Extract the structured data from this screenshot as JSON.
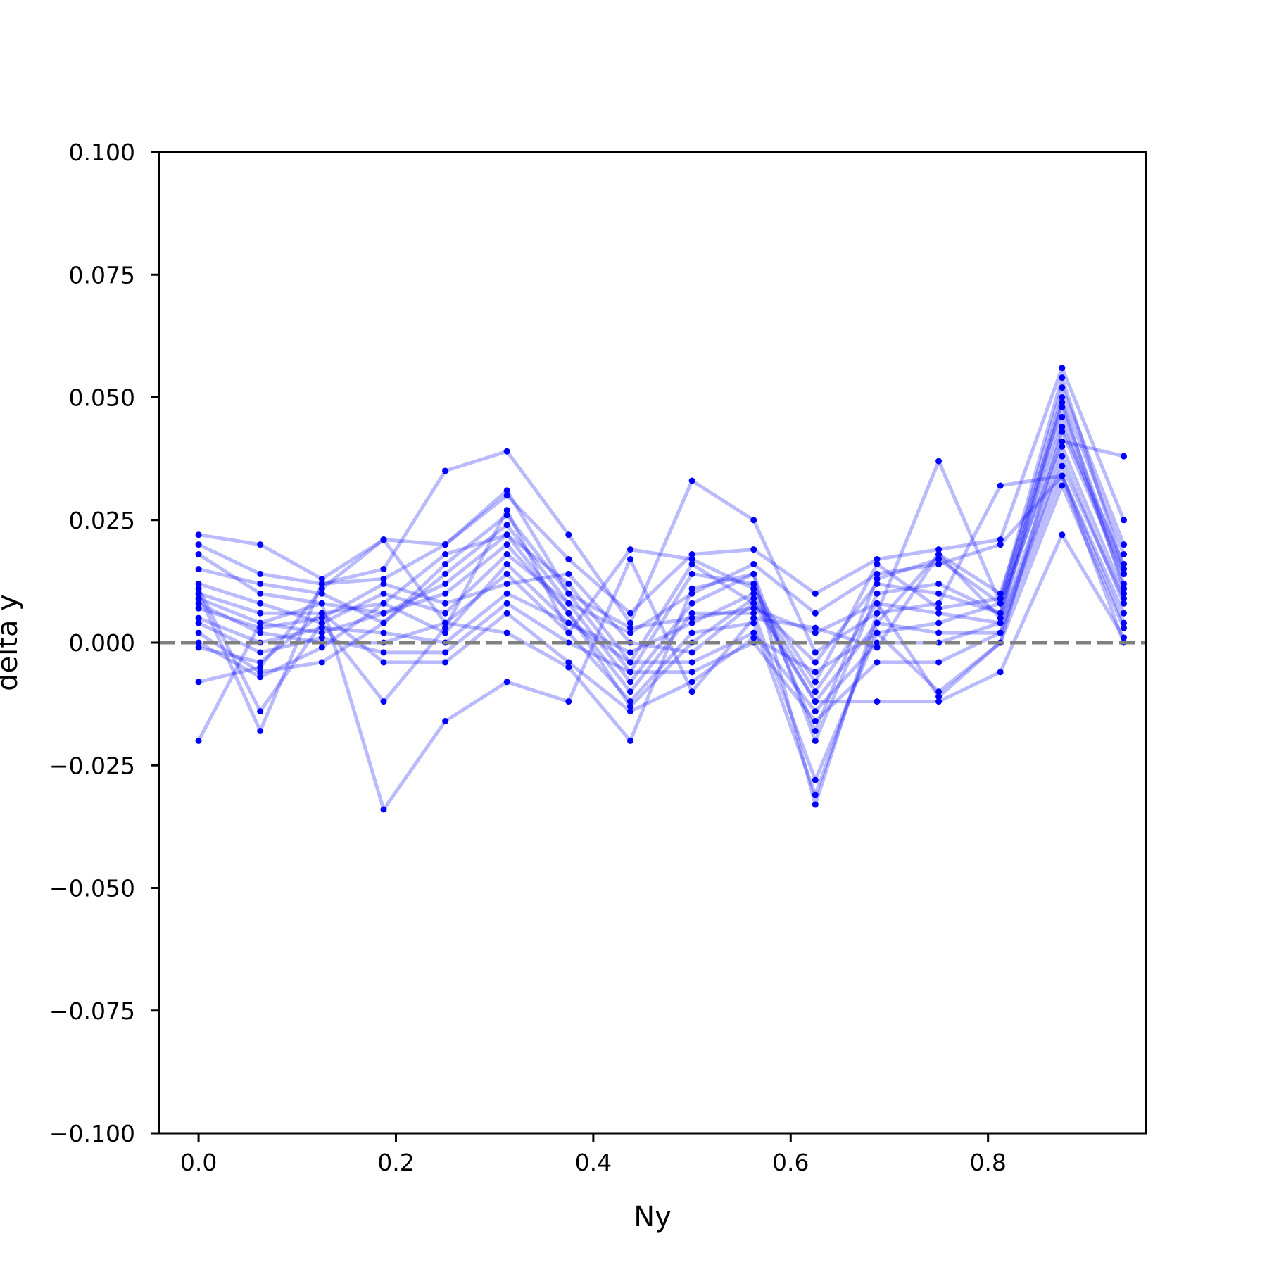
{
  "chart_data": {
    "type": "line",
    "title": "",
    "xlabel": "Ny",
    "ylabel": "delta y",
    "xlim": [
      -0.04,
      0.96
    ],
    "ylim": [
      -0.1,
      0.1
    ],
    "xticks": [
      "0.0",
      "0.2",
      "0.4",
      "0.6",
      "0.8"
    ],
    "xtick_values": [
      0.0,
      0.2,
      0.4,
      0.6,
      0.8
    ],
    "yticks": [
      "−0.100",
      "−0.075",
      "−0.050",
      "−0.025",
      "0.000",
      "0.025",
      "0.050",
      "0.075",
      "0.100"
    ],
    "ytick_values": [
      -0.1,
      -0.075,
      -0.05,
      -0.025,
      0.0,
      0.025,
      0.05,
      0.075,
      0.1
    ],
    "grid": false,
    "legend": "none",
    "line_color": "#0000ff",
    "line_alpha": 0.27,
    "reference_line": {
      "y": 0.0,
      "style": "dashed",
      "color": "#808080"
    },
    "x": [
      0.0,
      0.0625,
      0.125,
      0.1875,
      0.25,
      0.3125,
      0.375,
      0.4375,
      0.5,
      0.5625,
      0.625,
      0.6875,
      0.75,
      0.8125,
      0.875,
      0.9375
    ],
    "series": [
      {
        "values": [
          0.022,
          0.02,
          0.013,
          0.021,
          0.02,
          0.03,
          0.017,
          0.006,
          0.018,
          0.019,
          0.01,
          0.017,
          0.019,
          0.021,
          0.056,
          0.025
        ]
      },
      {
        "values": [
          0.02,
          0.014,
          0.012,
          0.015,
          0.035,
          0.039,
          0.022,
          0.004,
          0.033,
          0.025,
          -0.002,
          0.006,
          0.037,
          0.008,
          0.041,
          0.038
        ]
      },
      {
        "values": [
          0.018,
          0.01,
          0.008,
          0.006,
          0.012,
          0.022,
          0.012,
          -0.004,
          0.016,
          0.008,
          -0.012,
          0.004,
          0.018,
          0.01,
          0.048,
          0.014
        ]
      },
      {
        "values": [
          0.015,
          0.012,
          0.01,
          0.004,
          0.016,
          0.026,
          0.01,
          -0.006,
          0.014,
          0.012,
          -0.018,
          0.013,
          0.017,
          0.008,
          0.052,
          0.02
        ]
      },
      {
        "values": [
          0.012,
          0.008,
          0.004,
          0.01,
          0.006,
          0.018,
          0.008,
          -0.008,
          0.008,
          0.014,
          -0.02,
          0.01,
          0.012,
          0.006,
          0.044,
          0.016
        ]
      },
      {
        "values": [
          0.01,
          0.006,
          0.006,
          0.008,
          0.002,
          0.016,
          0.004,
          -0.002,
          0.004,
          0.01,
          -0.01,
          0.008,
          0.006,
          0.004,
          0.04,
          0.01
        ]
      },
      {
        "values": [
          0.009,
          0.004,
          0.002,
          0.006,
          0.01,
          0.02,
          0.006,
          -0.01,
          0.006,
          0.006,
          -0.028,
          0.002,
          0.004,
          0.008,
          0.046,
          0.012
        ]
      },
      {
        "values": [
          0.008,
          0.002,
          0.0,
          0.0,
          0.004,
          0.014,
          0.002,
          -0.012,
          0.002,
          0.004,
          -0.031,
          0.004,
          0.002,
          0.002,
          0.038,
          0.008
        ]
      },
      {
        "values": [
          0.007,
          0.003,
          0.005,
          0.012,
          0.008,
          0.012,
          0.014,
          0.0,
          -0.002,
          0.008,
          -0.004,
          0.012,
          0.01,
          0.006,
          0.05,
          0.018
        ]
      },
      {
        "values": [
          0.005,
          0.0,
          0.003,
          0.002,
          0.0,
          0.01,
          0.004,
          -0.004,
          -0.004,
          0.002,
          -0.014,
          0.0,
          0.0,
          0.004,
          0.036,
          0.009
        ]
      },
      {
        "values": [
          0.004,
          -0.002,
          0.001,
          -0.002,
          -0.002,
          0.008,
          0.0,
          -0.006,
          -0.006,
          0.0,
          -0.016,
          -0.004,
          -0.004,
          0.002,
          0.034,
          0.006
        ]
      },
      {
        "values": [
          0.002,
          -0.006,
          -0.004,
          0.004,
          0.014,
          0.024,
          0.008,
          0.002,
          0.01,
          0.016,
          0.006,
          0.014,
          0.016,
          0.02,
          0.034,
          0.004
        ]
      },
      {
        "values": [
          0.0,
          -0.007,
          -0.001,
          0.008,
          0.018,
          0.022,
          0.006,
          -0.013,
          0.0,
          0.009,
          -0.012,
          -0.012,
          -0.012,
          -0.006,
          0.022,
          0.001
        ]
      },
      {
        "values": [
          -0.001,
          -0.004,
          0.006,
          -0.004,
          -0.004,
          0.006,
          -0.004,
          -0.014,
          -0.008,
          0.001,
          -0.006,
          0.002,
          -0.01,
          0.0,
          0.032,
          0.003
        ]
      },
      {
        "values": [
          -0.008,
          -0.005,
          0.011,
          0.021,
          0.004,
          0.002,
          -0.005,
          -0.02,
          0.011,
          0.014,
          -0.033,
          0.006,
          0.008,
          0.032,
          0.034,
          0.0
        ]
      },
      {
        "values": [
          -0.02,
          0.004,
          0.008,
          -0.034,
          -0.016,
          -0.008,
          -0.012,
          0.017,
          -0.01,
          0.005,
          0.003,
          -0.001,
          0.018,
          0.005,
          0.049,
          0.011
        ]
      },
      {
        "values": [
          0.011,
          -0.014,
          0.004,
          -0.012,
          0.003,
          0.027,
          0.002,
          0.019,
          0.017,
          0.011,
          -0.008,
          0.016,
          0.007,
          0.009,
          0.054,
          0.015
        ]
      },
      {
        "values": [
          0.01,
          -0.018,
          0.012,
          0.013,
          0.02,
          0.031,
          0.01,
          0.003,
          0.005,
          0.007,
          0.002,
          0.008,
          -0.011,
          0.0,
          0.043,
          0.014
        ]
      }
    ]
  }
}
